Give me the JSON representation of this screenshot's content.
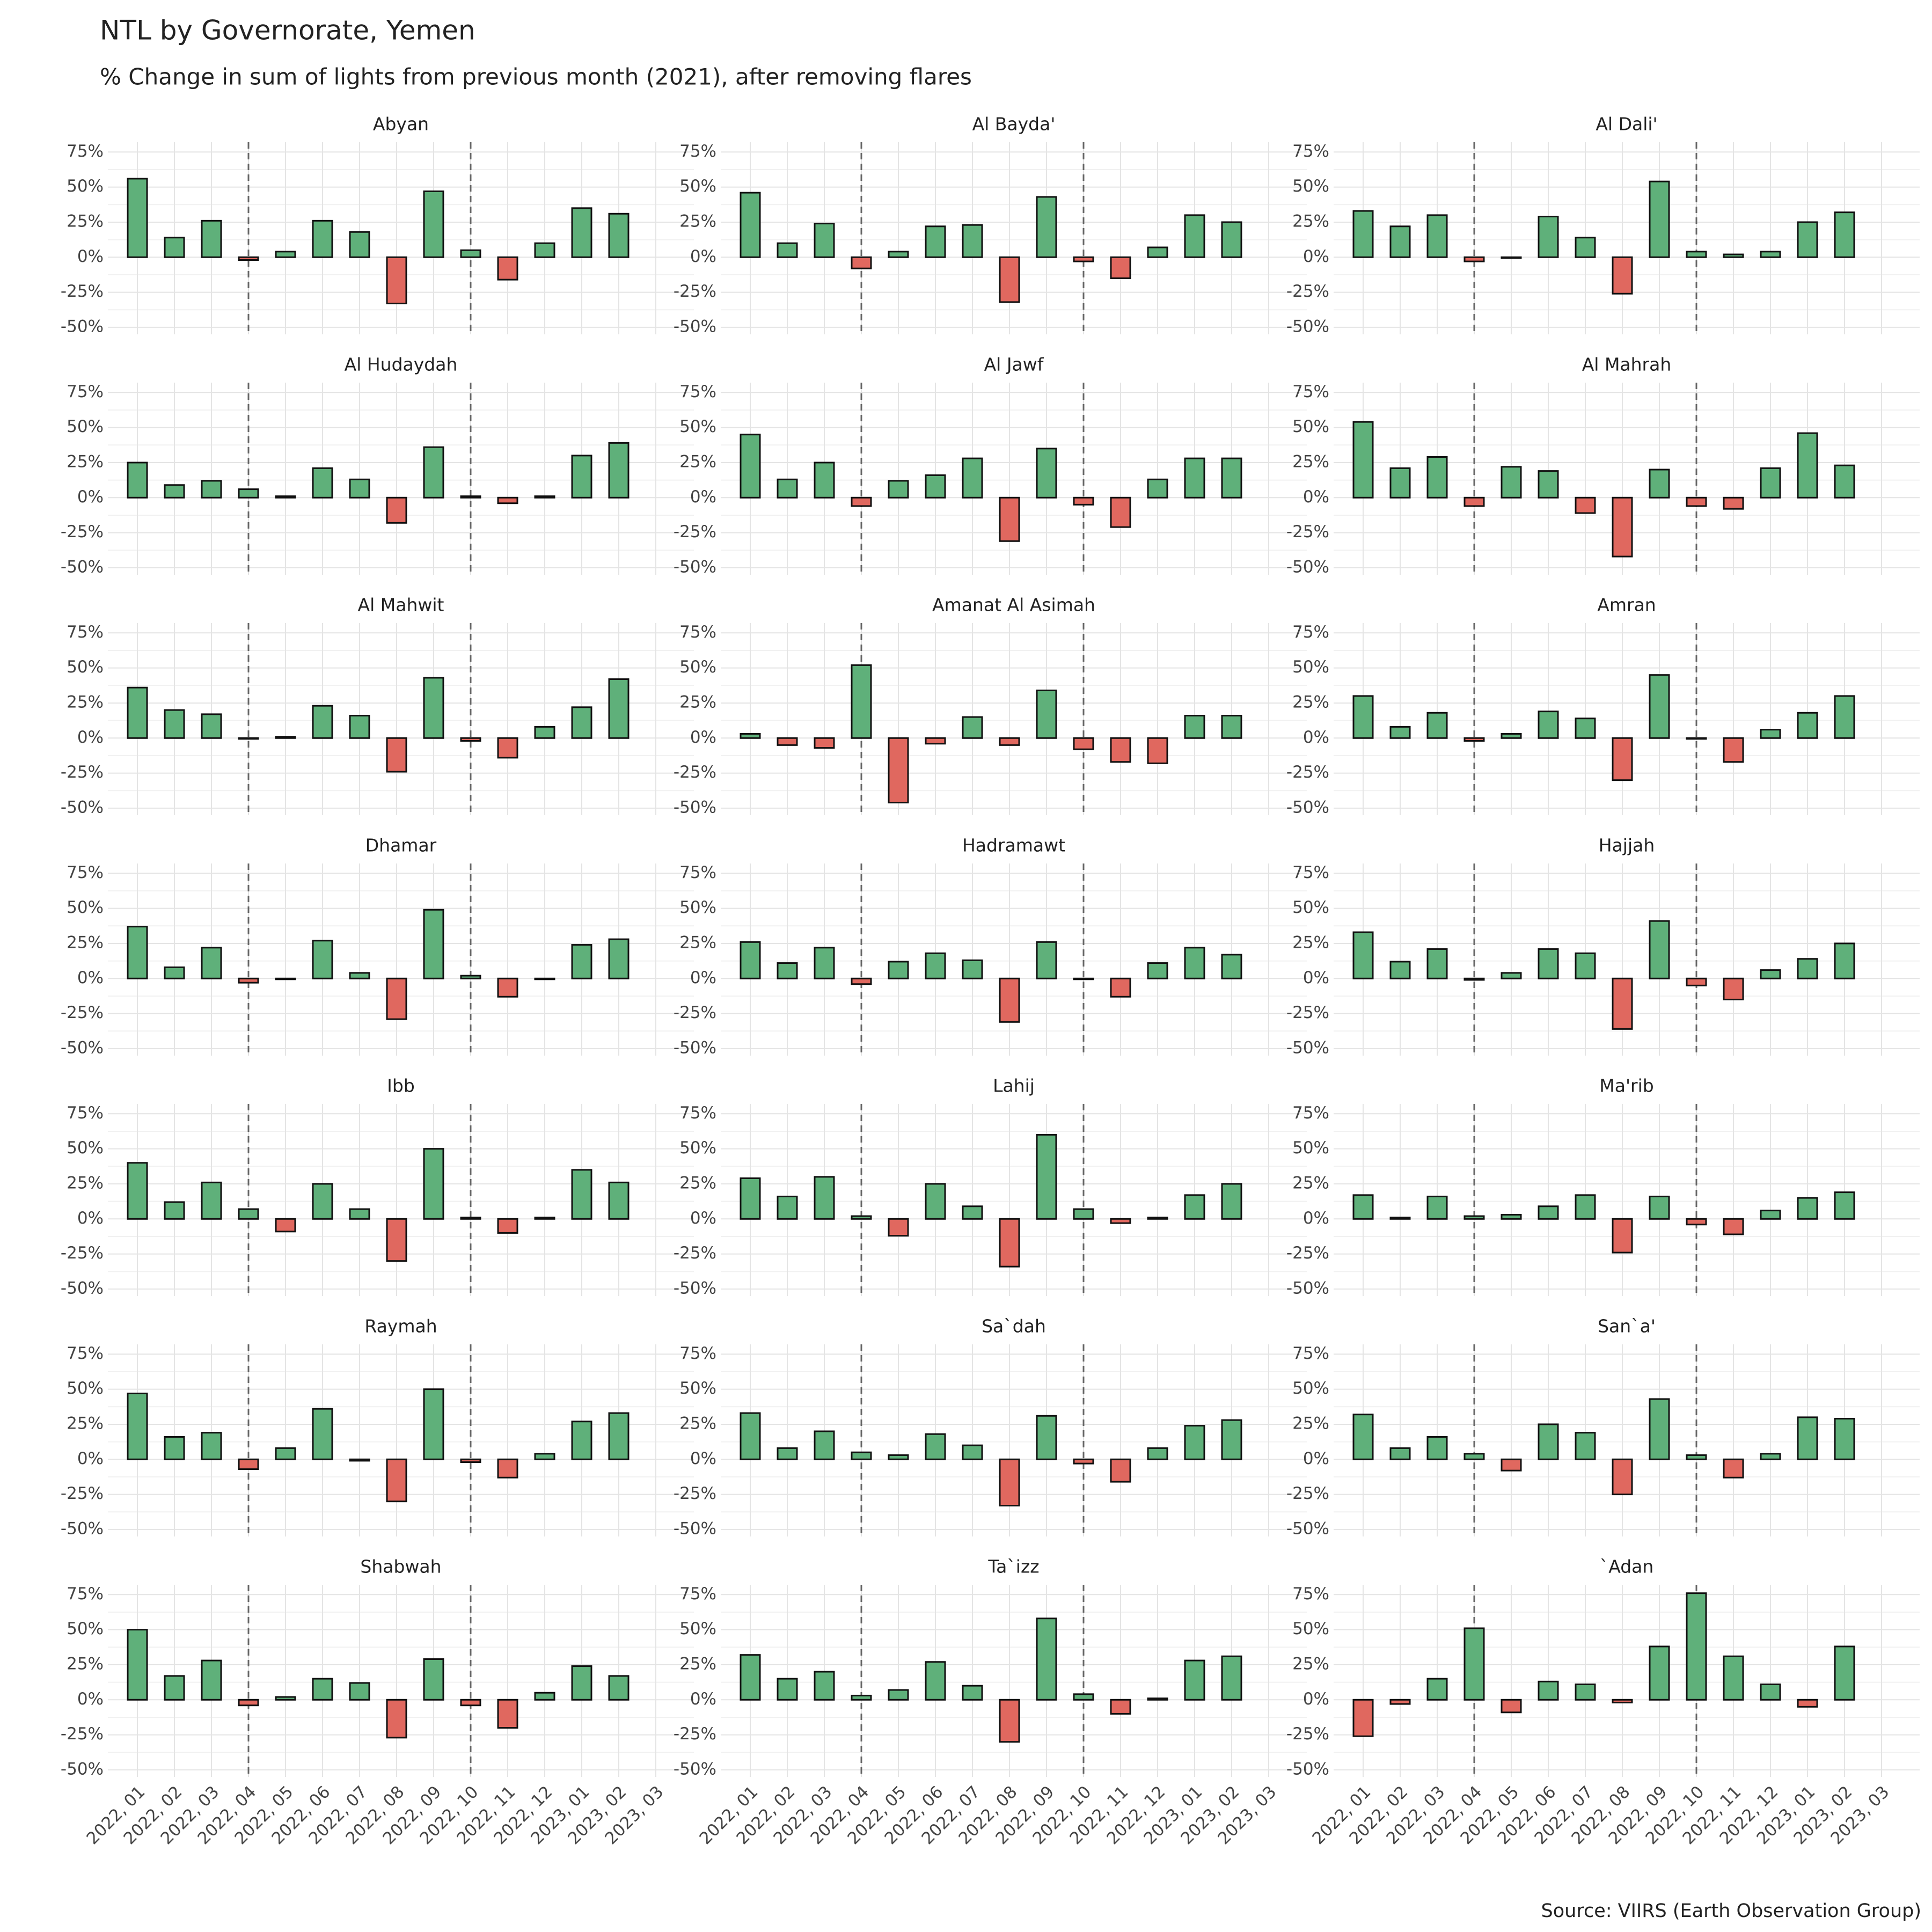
{
  "chart_data": {
    "type": "bar",
    "title": "NTL by Governorate, Yemen",
    "subtitle": "% Change in sum of lights from previous month (2021), after removing flares",
    "caption": "Source: VIIRS (Earth Observation Group)",
    "categories": [
      "2022, 01",
      "2022, 02",
      "2022, 03",
      "2022, 04",
      "2022, 05",
      "2022, 06",
      "2022, 07",
      "2022, 08",
      "2022, 09",
      "2022, 10",
      "2022, 11",
      "2022, 12",
      "2023, 01",
      "2023, 02",
      "2023, 03"
    ],
    "ylim": [
      -55,
      82
    ],
    "yticks": [
      {
        "value": -50,
        "label": "-50%"
      },
      {
        "value": -25,
        "label": "-25%"
      },
      {
        "value": 0,
        "label": "0%"
      },
      {
        "value": 25,
        "label": "25%"
      },
      {
        "value": 50,
        "label": "50%"
      },
      {
        "value": 75,
        "label": "75%"
      }
    ],
    "grid": true,
    "colors": {
      "positive": "#5fb07a",
      "negative": "#e0685f"
    },
    "vlines": [
      "2022, 04",
      "2022, 10"
    ],
    "facets": [
      {
        "name": "Abyan",
        "values": [
          56,
          14,
          26,
          -2,
          4,
          26,
          18,
          -33,
          47,
          5,
          -16,
          10,
          35,
          31,
          null
        ]
      },
      {
        "name": "Al Bayda'",
        "values": [
          46,
          10,
          24,
          -8,
          4,
          22,
          23,
          -32,
          43,
          -3,
          -15,
          7,
          30,
          25,
          null
        ]
      },
      {
        "name": "Al Dali'",
        "values": [
          33,
          22,
          30,
          -3,
          0,
          29,
          14,
          -26,
          54,
          4,
          2,
          4,
          25,
          32,
          null
        ]
      },
      {
        "name": "Al Hudaydah",
        "values": [
          25,
          9,
          12,
          6,
          1,
          21,
          13,
          -18,
          36,
          1,
          -4,
          1,
          30,
          39,
          null
        ]
      },
      {
        "name": "Al Jawf",
        "values": [
          45,
          13,
          25,
          -6,
          12,
          16,
          28,
          -31,
          35,
          -5,
          -21,
          13,
          28,
          28,
          null
        ]
      },
      {
        "name": "Al Mahrah",
        "values": [
          54,
          21,
          29,
          -6,
          22,
          19,
          -11,
          -42,
          20,
          -6,
          -8,
          21,
          46,
          23,
          null
        ]
      },
      {
        "name": "Al Mahwit",
        "values": [
          36,
          20,
          17,
          0,
          1,
          23,
          16,
          -24,
          43,
          -2,
          -14,
          8,
          22,
          42,
          null
        ]
      },
      {
        "name": "Amanat Al Asimah",
        "values": [
          3,
          -5,
          -7,
          52,
          -46,
          -4,
          15,
          -5,
          34,
          -8,
          -17,
          -18,
          16,
          16,
          null
        ]
      },
      {
        "name": "Amran",
        "values": [
          30,
          8,
          18,
          -2,
          3,
          19,
          14,
          -30,
          45,
          0,
          -17,
          6,
          18,
          30,
          null
        ]
      },
      {
        "name": "Dhamar",
        "values": [
          37,
          8,
          22,
          -3,
          0,
          27,
          4,
          -29,
          49,
          2,
          -13,
          0,
          24,
          28,
          null
        ]
      },
      {
        "name": "Hadramawt",
        "values": [
          26,
          11,
          22,
          -4,
          12,
          18,
          13,
          -31,
          26,
          0,
          -13,
          11,
          22,
          17,
          null
        ]
      },
      {
        "name": "Hajjah",
        "values": [
          33,
          12,
          21,
          -1,
          4,
          21,
          18,
          -36,
          41,
          -5,
          -15,
          6,
          14,
          25,
          null
        ]
      },
      {
        "name": "Ibb",
        "values": [
          40,
          12,
          26,
          7,
          -9,
          25,
          7,
          -30,
          50,
          1,
          -10,
          1,
          35,
          26,
          null
        ]
      },
      {
        "name": "Lahij",
        "values": [
          29,
          16,
          30,
          2,
          -12,
          25,
          9,
          -34,
          60,
          7,
          -3,
          1,
          17,
          25,
          null
        ]
      },
      {
        "name": "Ma'rib",
        "values": [
          17,
          1,
          16,
          2,
          3,
          9,
          17,
          -24,
          16,
          -4,
          -11,
          6,
          15,
          19,
          null
        ]
      },
      {
        "name": "Raymah",
        "values": [
          47,
          16,
          19,
          -7,
          8,
          36,
          -1,
          -30,
          50,
          -2,
          -13,
          4,
          27,
          33,
          null
        ]
      },
      {
        "name": "Sa`dah",
        "values": [
          33,
          8,
          20,
          5,
          3,
          18,
          10,
          -33,
          31,
          -3,
          -16,
          8,
          24,
          28,
          null
        ]
      },
      {
        "name": "San`a'",
        "values": [
          32,
          8,
          16,
          4,
          -8,
          25,
          19,
          -25,
          43,
          3,
          -13,
          4,
          30,
          29,
          null
        ]
      },
      {
        "name": "Shabwah",
        "values": [
          50,
          17,
          28,
          -4,
          2,
          15,
          12,
          -27,
          29,
          -4,
          -20,
          5,
          24,
          17,
          null
        ]
      },
      {
        "name": "Ta`izz",
        "values": [
          32,
          15,
          20,
          3,
          7,
          27,
          10,
          -30,
          58,
          4,
          -10,
          1,
          28,
          31,
          null
        ]
      },
      {
        "name": "`Adan",
        "values": [
          -26,
          -3,
          15,
          51,
          -9,
          13,
          11,
          -2,
          38,
          76,
          31,
          11,
          -5,
          38,
          null
        ]
      }
    ]
  }
}
